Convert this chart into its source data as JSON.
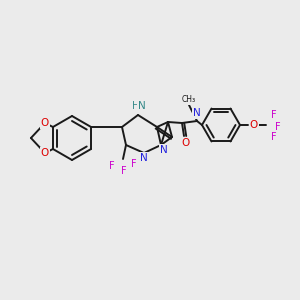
{
  "background_color": "#ebebeb",
  "bond_color": "#1a1a1a",
  "atom_colors": {
    "N": "#2222dd",
    "O": "#dd0000",
    "F": "#cc00cc",
    "NH": "#338888",
    "C": "#1a1a1a"
  },
  "figsize": [
    3.0,
    3.0
  ],
  "dpi": 100
}
